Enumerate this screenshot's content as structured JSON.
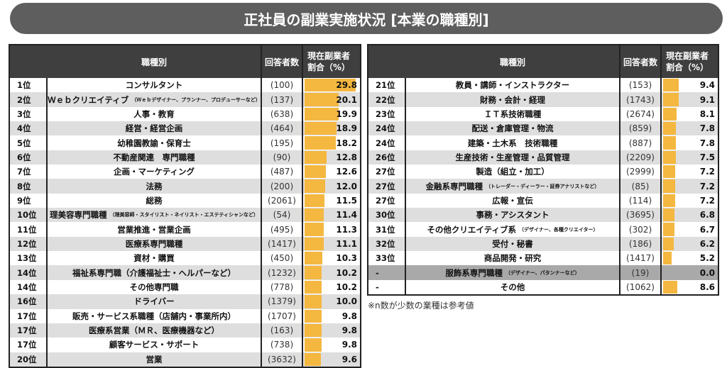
{
  "title": "正社員の副業実施状況 [本業の職種別]",
  "headers": {
    "name": "職種別",
    "count": "回答者数",
    "pct_line1": "現在副業者",
    "pct_line2": "割合（%）"
  },
  "footnote": "※n数が少数の業種は参考値",
  "colors": {
    "header": "#3f3f3f",
    "bar": "#f4b740",
    "banner": "#5e5e5e",
    "alt_row": "#dedede",
    "excluded_row": "#a9a9a9"
  },
  "chart_data": {
    "type": "table",
    "title": "正社員の副業実施状況 [本業の職種別]",
    "columns": [
      "職種別",
      "回答者数",
      "現在副業者割合（%）"
    ],
    "bar_scale_max": 30,
    "left_table": [
      {
        "rank": "1位",
        "name": "コンサルタント",
        "note": "",
        "count": "(100)",
        "pct": 29.8
      },
      {
        "rank": "2位",
        "name": "Ｗｅｂクリエイティブ",
        "note": "（Ｗｅｂデザイナー、プランナー、プロデューサーなど）",
        "count": "(137)",
        "pct": 20.1
      },
      {
        "rank": "3位",
        "name": "人事・教育",
        "note": "",
        "count": "(638)",
        "pct": 19.9
      },
      {
        "rank": "4位",
        "name": "経営・経営企画",
        "note": "",
        "count": "(464)",
        "pct": 18.9
      },
      {
        "rank": "5位",
        "name": "幼稚園教諭・保育士",
        "note": "",
        "count": "(195)",
        "pct": 18.2
      },
      {
        "rank": "6位",
        "name": "不動産関連　専門職種",
        "note": "",
        "count": "(90)",
        "pct": 12.8
      },
      {
        "rank": "7位",
        "name": "企画・マーケティング",
        "note": "",
        "count": "(487)",
        "pct": 12.6
      },
      {
        "rank": "8位",
        "name": "法務",
        "note": "",
        "count": "(200)",
        "pct": 12.0
      },
      {
        "rank": "9位",
        "name": "総務",
        "note": "",
        "count": "(2061)",
        "pct": 11.5
      },
      {
        "rank": "10位",
        "name": "理美容専門職種",
        "note": "（理美容師・スタイリスト・ネイリスト・エステティシャンなど）",
        "count": "(54)",
        "pct": 11.4
      },
      {
        "rank": "11位",
        "name": "営業推進・営業企画",
        "note": "",
        "count": "(495)",
        "pct": 11.3
      },
      {
        "rank": "12位",
        "name": "医療系専門職種",
        "note": "",
        "count": "(1417)",
        "pct": 11.1
      },
      {
        "rank": "13位",
        "name": "資材・購買",
        "note": "",
        "count": "(450)",
        "pct": 10.3
      },
      {
        "rank": "14位",
        "name": "福祉系専門職（介護福祉士・ヘルパーなど）",
        "note": "",
        "count": "(1232)",
        "pct": 10.2
      },
      {
        "rank": "14位",
        "name": "その他専門職",
        "note": "",
        "count": "(778)",
        "pct": 10.2
      },
      {
        "rank": "16位",
        "name": "ドライバー",
        "note": "",
        "count": "(1379)",
        "pct": 10.0
      },
      {
        "rank": "17位",
        "name": "販売・サービス系職種（店舗内・事業所内）",
        "note": "",
        "count": "(1707)",
        "pct": 9.8
      },
      {
        "rank": "17位",
        "name": "医療系営業（ＭＲ、医療機器など）",
        "note": "",
        "count": "(163)",
        "pct": 9.8
      },
      {
        "rank": "17位",
        "name": "顧客サービス・サポート",
        "note": "",
        "count": "(738)",
        "pct": 9.8
      },
      {
        "rank": "20位",
        "name": "営業",
        "note": "",
        "count": "(3632)",
        "pct": 9.6
      }
    ],
    "right_table": [
      {
        "rank": "21位",
        "name": "教員・講師・インストラクター",
        "note": "",
        "count": "(153)",
        "pct": 9.4
      },
      {
        "rank": "22位",
        "name": "財務・会計・経理",
        "note": "",
        "count": "(1743)",
        "pct": 9.1
      },
      {
        "rank": "23位",
        "name": "ＩＴ系技術職種",
        "note": "",
        "count": "(2674)",
        "pct": 8.1
      },
      {
        "rank": "24位",
        "name": "配送・倉庫管理・物流",
        "note": "",
        "count": "(859)",
        "pct": 7.8
      },
      {
        "rank": "24位",
        "name": "建築・土木系　技術職種",
        "note": "",
        "count": "(887)",
        "pct": 7.8
      },
      {
        "rank": "26位",
        "name": "生産技術・生産管理・品質管理",
        "note": "",
        "count": "(2209)",
        "pct": 7.5
      },
      {
        "rank": "27位",
        "name": "製造（組立・加工）",
        "note": "",
        "count": "(2999)",
        "pct": 7.2
      },
      {
        "rank": "27位",
        "name": "金融系専門職種",
        "note": "（トレーダー・ディーラー・証券アナリストなど）",
        "count": "(85)",
        "pct": 7.2
      },
      {
        "rank": "27位",
        "name": "広報・宣伝",
        "note": "",
        "count": "(114)",
        "pct": 7.2
      },
      {
        "rank": "30位",
        "name": "事務・アシスタント",
        "note": "",
        "count": "(3695)",
        "pct": 6.8
      },
      {
        "rank": "31位",
        "name": "その他クリエイティブ系",
        "note": "（デザイナー、各種クリエイター）",
        "count": "(302)",
        "pct": 6.7
      },
      {
        "rank": "32位",
        "name": "受付・秘書",
        "note": "",
        "count": "(186)",
        "pct": 6.2
      },
      {
        "rank": "33位",
        "name": "商品開発・研究",
        "note": "",
        "count": "(1417)",
        "pct": 5.2
      },
      {
        "rank": "-",
        "name": "服飾系専門職種",
        "note": "（デザイナー、パタンナーなど）",
        "count": "(19)",
        "pct": 0.0,
        "excluded": true
      },
      {
        "rank": "-",
        "name": "その他",
        "note": "",
        "count": "(1062)",
        "pct": 8.6
      }
    ]
  }
}
